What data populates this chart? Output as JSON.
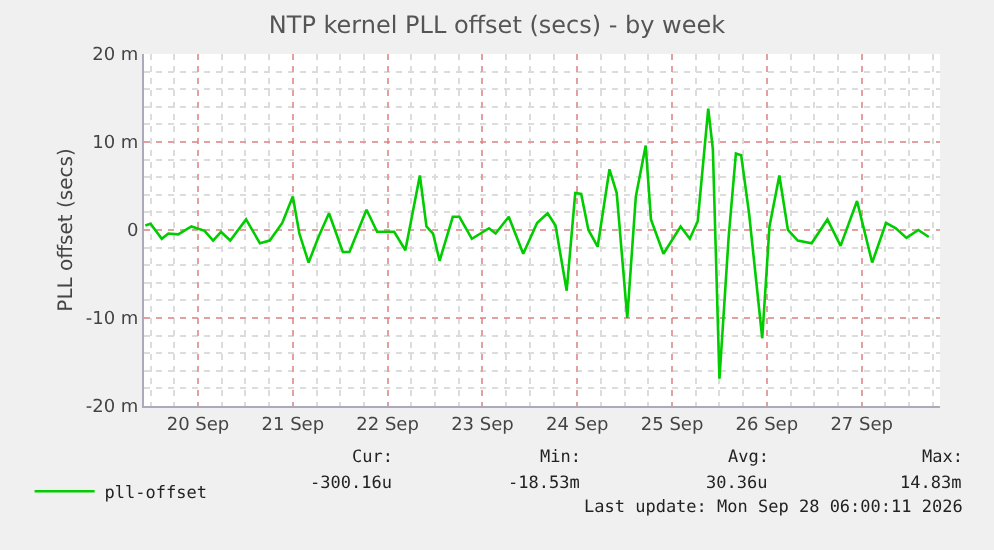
{
  "chart_data": {
    "type": "line",
    "title": "NTP kernel PLL offset (secs) - by week",
    "ylabel": "PLL offset (secs)",
    "x": [
      "2026-09-19T22:40",
      "2026-09-20T00:00",
      "2026-09-20T02:50",
      "2026-09-20T04:30",
      "2026-09-20T07:00",
      "2026-09-20T10:20",
      "2026-09-20T13:40",
      "2026-09-20T15:50",
      "2026-09-20T17:50",
      "2026-09-20T20:10",
      "2026-09-21T00:10",
      "2026-09-21T03:40",
      "2026-09-21T06:10",
      "2026-09-21T09:20",
      "2026-09-21T12:00",
      "2026-09-21T13:40",
      "2026-09-21T16:00",
      "2026-09-21T18:30",
      "2026-09-21T21:10",
      "2026-09-22T00:40",
      "2026-09-22T02:20",
      "2026-09-22T06:40",
      "2026-09-22T09:20",
      "2026-09-22T13:40",
      "2026-09-22T16:30",
      "2026-09-22T20:10",
      "2026-09-22T21:50",
      "2026-09-22T23:30",
      "2026-09-23T01:10",
      "2026-09-23T04:30",
      "2026-09-23T06:10",
      "2026-09-23T09:20",
      "2026-09-23T13:40",
      "2026-09-23T15:20",
      "2026-09-23T18:40",
      "2026-09-23T22:20",
      "2026-09-24T01:50",
      "2026-09-24T04:30",
      "2026-09-24T06:30",
      "2026-09-24T09:20",
      "2026-09-24T11:30",
      "2026-09-24T13:00",
      "2026-09-24T14:50",
      "2026-09-24T17:10",
      "2026-09-24T20:10",
      "2026-09-24T22:00",
      "2026-09-25T00:40",
      "2026-09-25T02:50",
      "2026-09-25T05:20",
      "2026-09-25T06:40",
      "2026-09-25T09:50",
      "2026-09-25T14:10",
      "2026-09-25T16:30",
      "2026-09-25T18:30",
      "2026-09-25T21:10",
      "2026-09-25T22:20",
      "2026-09-26T00:00",
      "2026-09-26T02:20",
      "2026-09-26T04:10",
      "2026-09-26T05:30",
      "2026-09-26T07:30",
      "2026-09-26T10:50",
      "2026-09-26T12:40",
      "2026-09-26T15:10",
      "2026-09-26T17:20",
      "2026-09-26T19:50",
      "2026-09-26T23:20",
      "2026-09-27T03:20",
      "2026-09-27T06:40",
      "2026-09-27T10:50",
      "2026-09-27T14:40",
      "2026-09-27T18:10",
      "2026-09-27T20:40",
      "2026-09-27T23:20",
      "2026-09-28T02:20",
      "2026-09-28T05:00"
    ],
    "series": [
      {
        "name": "pll-offset",
        "color": "#00cc00",
        "values": [
          0.5,
          0.7,
          -1.0,
          -0.4,
          -0.5,
          0.4,
          -0.1,
          -1.2,
          -0.2,
          -1.2,
          1.2,
          -1.5,
          -1.2,
          0.8,
          3.8,
          -0.4,
          -3.7,
          -0.8,
          1.9,
          -2.5,
          -2.5,
          2.3,
          -0.2,
          -0.2,
          -2.3,
          6.2,
          0.4,
          -0.4,
          -3.5,
          1.5,
          1.5,
          -1.0,
          0.2,
          -0.4,
          1.5,
          -2.7,
          0.8,
          1.9,
          0.5,
          -6.9,
          4.2,
          4.1,
          0,
          -1.9,
          6.9,
          4.2,
          -10.0,
          3.8,
          9.6,
          1.2,
          -2.7,
          0.4,
          -1.0,
          1.0,
          13.8,
          9.2,
          -16.9,
          -0.8,
          8.7,
          8.5,
          1.9,
          -12.3,
          0.4,
          6.2,
          0,
          -1.2,
          -1.5,
          1.2,
          -1.8,
          3.3,
          -3.7,
          0.8,
          0.2,
          -0.9,
          0,
          -0.8
        ]
      }
    ],
    "xlim": [
      "2026-09-19T22:20",
      "2026-09-28T07:50"
    ],
    "xticks": [
      {
        "value": "2026-09-20T12:00",
        "label": "20 Sep"
      },
      {
        "value": "2026-09-21T12:00",
        "label": "21 Sep"
      },
      {
        "value": "2026-09-22T12:00",
        "label": "22 Sep"
      },
      {
        "value": "2026-09-23T12:00",
        "label": "23 Sep"
      },
      {
        "value": "2026-09-24T12:00",
        "label": "24 Sep"
      },
      {
        "value": "2026-09-25T12:00",
        "label": "25 Sep"
      },
      {
        "value": "2026-09-26T12:00",
        "label": "26 Sep"
      },
      {
        "value": "2026-09-27T12:00",
        "label": "27 Sep"
      }
    ],
    "ylim": [
      -20,
      20
    ],
    "yticks": [
      {
        "value": -20,
        "label": "-20 m"
      },
      {
        "value": -10,
        "label": "-10 m"
      },
      0,
      {
        "value": 10,
        "label": "10 m"
      },
      {
        "value": 20,
        "label": "20 m"
      }
    ],
    "grid": true,
    "legend": "bottom",
    "marker": "none",
    "line_style": "solid",
    "annotations": [
      "Cur:",
      "Min:",
      "Avg:",
      "Max:",
      "-300.16u",
      "-18.53m",
      "30.36u",
      "14.83m",
      "Last update: Mon Sep 28 06:00:11 2026"
    ]
  }
}
